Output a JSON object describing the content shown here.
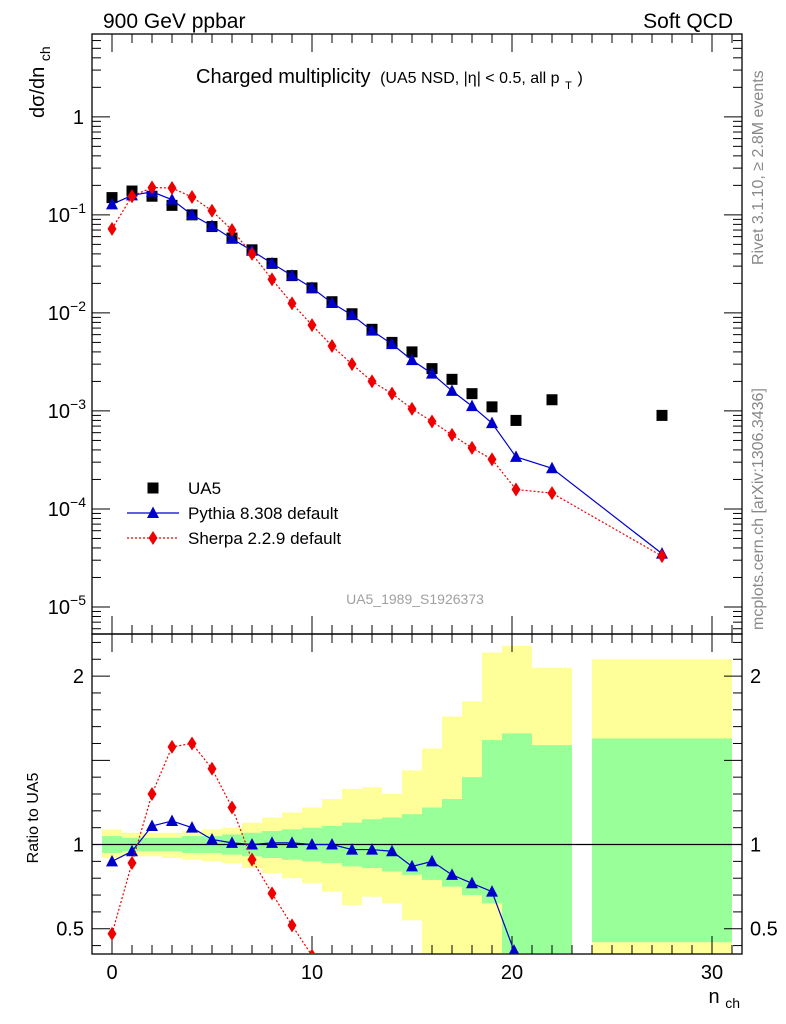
{
  "header": {
    "left": "900 GeV ppbar",
    "right": "Soft QCD"
  },
  "side_labels": {
    "top": "Rivet 3.1.10, ≥ 2.8M events",
    "bottom": "mcplots.cern.ch [arXiv:1306.3436]"
  },
  "watermark": "UA5_1989_S1926373",
  "title": {
    "main": "Charged multiplicity",
    "sub": "(UA5 NSD, |η| < 0.5, all p",
    "sub_sub": "T",
    "sub_end": ")"
  },
  "chart_data": [
    {
      "type": "scatter",
      "panel": "main",
      "title": "Charged multiplicity (UA5 NSD, |η| < 0.5, all pT)",
      "ylabel": "dσ/dn",
      "ylabel_sub": "ch",
      "yscale": "log",
      "xlim": [
        -1,
        31.5
      ],
      "ylim": [
        5.3e-06,
        7
      ],
      "xticks": [
        0,
        10,
        20,
        30
      ],
      "ytick_labels": [
        {
          "value": 1,
          "base": "1",
          "exp": ""
        },
        {
          "value": 0.1,
          "base": "10",
          "exp": "−1"
        },
        {
          "value": 0.01,
          "base": "10",
          "exp": "−2"
        },
        {
          "value": 0.001,
          "base": "10",
          "exp": "−3"
        },
        {
          "value": 0.0001,
          "base": "10",
          "exp": "−4"
        },
        {
          "value": 1e-05,
          "base": "10",
          "exp": "−5"
        }
      ],
      "legend_position": "bottom-left",
      "series": [
        {
          "name": "UA5",
          "color": "#000000",
          "marker": "square",
          "line": "none",
          "x": [
            0,
            1,
            2,
            3,
            4,
            5,
            6,
            7,
            8,
            9,
            10,
            11,
            12,
            13,
            14,
            15,
            16,
            17,
            18,
            19,
            20.2,
            22,
            27.5
          ],
          "y": [
            0.15,
            0.175,
            0.155,
            0.125,
            0.1,
            0.076,
            0.058,
            0.044,
            0.032,
            0.024,
            0.018,
            0.013,
            0.0098,
            0.0068,
            0.005,
            0.004,
            0.0027,
            0.0021,
            0.0015,
            0.0011,
            0.0008,
            0.0013,
            0.0009
          ]
        },
        {
          "name": "Pythia 8.308 default",
          "color": "#0000cc",
          "marker": "triangle",
          "line": "solid",
          "x": [
            0,
            1,
            2,
            3,
            4,
            5,
            6,
            7,
            8,
            9,
            10,
            11,
            12,
            13,
            14,
            15,
            16,
            17,
            18,
            19,
            20.2,
            22,
            27.5
          ],
          "y": [
            0.128,
            0.158,
            0.172,
            0.143,
            0.1,
            0.077,
            0.057,
            0.043,
            0.032,
            0.024,
            0.018,
            0.0126,
            0.0095,
            0.0066,
            0.0048,
            0.0033,
            0.0024,
            0.0016,
            0.00112,
            0.00075,
            0.00034,
            0.00026,
            3.5e-05
          ]
        },
        {
          "name": "Sherpa 2.2.9 default",
          "color": "#ee0000",
          "marker": "diamond",
          "line": "dotted",
          "x": [
            0,
            1,
            2,
            3,
            4,
            5,
            6,
            7,
            8,
            9,
            10,
            11,
            12,
            13,
            14,
            15,
            16,
            17,
            18,
            19,
            20.2,
            22,
            27.5
          ],
          "y": [
            0.072,
            0.155,
            0.19,
            0.188,
            0.152,
            0.11,
            0.07,
            0.04,
            0.022,
            0.0125,
            0.0075,
            0.0046,
            0.003,
            0.002,
            0.0015,
            0.00105,
            0.00078,
            0.00057,
            0.00042,
            0.00032,
            0.000158,
            0.000145,
            3.3e-05
          ]
        }
      ]
    },
    {
      "type": "line",
      "panel": "ratio",
      "ylabel": "Ratio to UA5",
      "xlabel": "n",
      "xlabel_sub": "ch",
      "xlim": [
        -1,
        31.5
      ],
      "ylim": [
        0.35,
        2.25
      ],
      "xticks": [
        0,
        10,
        20,
        30
      ],
      "xtick_labels": [
        "0",
        "10",
        "20",
        "30"
      ],
      "yticks": [
        0.5,
        1,
        2
      ],
      "ytick_labels": [
        "0.5",
        "1",
        "2"
      ],
      "reference_line": 1,
      "bands": {
        "green_color": "#99ff99",
        "yellow_color": "#ffff99",
        "bins": [
          {
            "x": [
              -0.5,
              0.5
            ],
            "g": [
              0.95,
              1.05
            ],
            "y": [
              0.92,
              1.09
            ]
          },
          {
            "x": [
              0.5,
              1.5
            ],
            "g": [
              0.96,
              1.04
            ],
            "y": [
              0.93,
              1.07
            ]
          },
          {
            "x": [
              1.5,
              2.5
            ],
            "g": [
              0.96,
              1.04
            ],
            "y": [
              0.93,
              1.07
            ]
          },
          {
            "x": [
              2.5,
              3.5
            ],
            "g": [
              0.96,
              1.04
            ],
            "y": [
              0.92,
              1.07
            ]
          },
          {
            "x": [
              3.5,
              4.5
            ],
            "g": [
              0.95,
              1.05
            ],
            "y": [
              0.91,
              1.08
            ]
          },
          {
            "x": [
              4.5,
              5.5
            ],
            "g": [
              0.95,
              1.05
            ],
            "y": [
              0.9,
              1.09
            ]
          },
          {
            "x": [
              5.5,
              6.5
            ],
            "g": [
              0.94,
              1.06
            ],
            "y": [
              0.89,
              1.1
            ]
          },
          {
            "x": [
              6.5,
              7.5
            ],
            "g": [
              0.93,
              1.07
            ],
            "y": [
              0.86,
              1.13
            ]
          },
          {
            "x": [
              7.5,
              8.5
            ],
            "g": [
              0.92,
              1.08
            ],
            "y": [
              0.83,
              1.16
            ]
          },
          {
            "x": [
              8.5,
              9.5
            ],
            "g": [
              0.91,
              1.09
            ],
            "y": [
              0.8,
              1.19
            ]
          },
          {
            "x": [
              9.5,
              10.5
            ],
            "g": [
              0.9,
              1.1
            ],
            "y": [
              0.77,
              1.22
            ]
          },
          {
            "x": [
              10.5,
              11.5
            ],
            "g": [
              0.89,
              1.11
            ],
            "y": [
              0.72,
              1.27
            ]
          },
          {
            "x": [
              11.5,
              12.5
            ],
            "g": [
              0.87,
              1.13
            ],
            "y": [
              0.64,
              1.33
            ]
          },
          {
            "x": [
              12.5,
              13.5
            ],
            "g": [
              0.86,
              1.15
            ],
            "y": [
              0.69,
              1.34
            ]
          },
          {
            "x": [
              13.5,
              14.5
            ],
            "g": [
              0.84,
              1.16
            ],
            "y": [
              0.65,
              1.3
            ]
          },
          {
            "x": [
              14.5,
              15.5
            ],
            "g": [
              0.82,
              1.18
            ],
            "y": [
              0.55,
              1.44
            ]
          },
          {
            "x": [
              15.5,
              16.5
            ],
            "g": [
              0.79,
              1.22
            ],
            "y": [
              0.35,
              1.57
            ]
          },
          {
            "x": [
              16.5,
              17.5
            ],
            "g": [
              0.75,
              1.27
            ],
            "y": [
              0.35,
              1.76
            ]
          },
          {
            "x": [
              17.5,
              18.5
            ],
            "g": [
              0.7,
              1.4
            ],
            "y": [
              0.35,
              1.85
            ]
          },
          {
            "x": [
              18.5,
              19.5
            ],
            "g": [
              0.65,
              1.62
            ],
            "y": [
              0.35,
              2.14
            ]
          },
          {
            "x": [
              19.5,
              21
            ],
            "g": [
              0.35,
              1.66
            ],
            "y": [
              0.35,
              2.18
            ]
          },
          {
            "x": [
              21,
              23
            ],
            "g": [
              0.35,
              1.59
            ],
            "y": [
              0.55,
              2.05
            ]
          },
          {
            "x": [
              24,
              31
            ],
            "g": [
              0.42,
              1.63
            ],
            "y": [
              0.35,
              2.1
            ]
          }
        ]
      },
      "series": [
        {
          "name": "Pythia 8.308 default",
          "color": "#0000cc",
          "marker": "triangle",
          "line": "solid",
          "x": [
            0,
            1,
            2,
            3,
            4,
            5,
            6,
            7,
            8,
            9,
            10,
            11,
            12,
            13,
            14,
            15,
            16,
            17,
            18,
            19,
            20.1
          ],
          "y": [
            0.9,
            0.96,
            1.11,
            1.14,
            1.1,
            1.03,
            1.01,
            1.0,
            1.01,
            1.01,
            1.0,
            1.0,
            0.97,
            0.97,
            0.96,
            0.87,
            0.9,
            0.82,
            0.77,
            0.72,
            0.37
          ]
        },
        {
          "name": "Sherpa 2.2.9 default",
          "color": "#ee0000",
          "marker": "diamond",
          "line": "dotted",
          "x": [
            0,
            1,
            2,
            3,
            4,
            5,
            6,
            7,
            8,
            9,
            10
          ],
          "y": [
            0.47,
            0.89,
            1.3,
            1.58,
            1.6,
            1.45,
            1.22,
            0.91,
            0.71,
            0.52,
            0.34
          ]
        }
      ]
    }
  ]
}
